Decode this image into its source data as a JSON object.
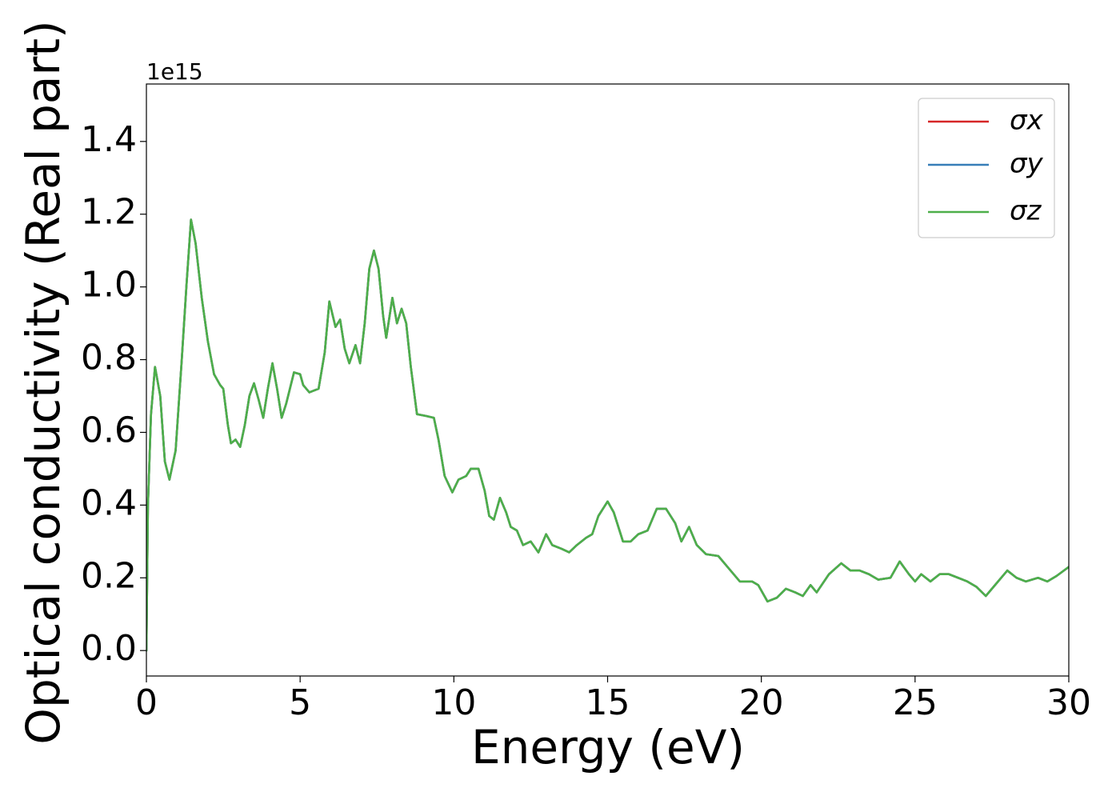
{
  "chart_data": {
    "type": "line",
    "x_label": "Energy (eV)",
    "y_label": "Optical conductivity (Real part)",
    "y_offset_label": "1e15",
    "xlim": [
      0,
      30
    ],
    "xticks": [
      0,
      5,
      10,
      15,
      20,
      25,
      30
    ],
    "ylim": [
      -0.07,
      1.558
    ],
    "yticks": [
      {
        "value": 0,
        "label": "0.0"
      },
      0.2,
      0.4,
      0.6,
      0.8,
      {
        "value": 1,
        "label": "1.0"
      },
      1.2,
      1.4
    ],
    "legend": "upper right",
    "x": [
      0,
      0.05,
      0.15,
      0.28,
      0.45,
      0.6,
      0.75,
      0.95,
      1.15,
      1.3,
      1.45,
      1.6,
      1.8,
      2.0,
      2.2,
      2.4,
      2.5,
      2.65,
      2.75,
      2.9,
      3.05,
      3.2,
      3.35,
      3.5,
      3.65,
      3.8,
      3.95,
      4.1,
      4.25,
      4.4,
      4.55,
      4.8,
      5.0,
      5.1,
      5.3,
      5.6,
      5.8,
      5.95,
      6.15,
      6.3,
      6.45,
      6.6,
      6.8,
      6.95,
      7.1,
      7.25,
      7.4,
      7.55,
      7.7,
      7.8,
      8.0,
      8.15,
      8.3,
      8.45,
      8.6,
      8.8,
      9.1,
      9.35,
      9.5,
      9.7,
      9.95,
      10.15,
      10.4,
      10.55,
      10.8,
      11.0,
      11.15,
      11.3,
      11.5,
      11.7,
      11.85,
      12.05,
      12.25,
      12.5,
      12.75,
      13.0,
      13.2,
      13.5,
      13.75,
      14.0,
      14.3,
      14.5,
      14.7,
      15.0,
      15.2,
      15.5,
      15.75,
      16.0,
      16.3,
      16.6,
      16.9,
      17.2,
      17.4,
      17.65,
      17.9,
      18.2,
      18.6,
      19.0,
      19.3,
      19.7,
      19.9,
      20.2,
      20.5,
      20.8,
      21.1,
      21.35,
      21.6,
      21.8,
      22.2,
      22.6,
      22.9,
      23.2,
      23.5,
      23.8,
      24.2,
      24.5,
      24.8,
      25.0,
      25.2,
      25.5,
      25.8,
      26.1,
      26.4,
      26.7,
      27.0,
      27.3,
      27.6,
      28.0,
      28.3,
      28.6,
      29.0,
      29.3,
      29.6,
      30.0
    ],
    "series": [
      {
        "name": "σx",
        "color": "#d62728",
        "values": [
          0,
          0.4,
          0.65,
          0.78,
          0.7,
          0.52,
          0.47,
          0.55,
          0.8,
          1.0,
          1.185,
          1.12,
          0.97,
          0.85,
          0.76,
          0.73,
          0.72,
          0.62,
          0.57,
          0.58,
          0.56,
          0.62,
          0.7,
          0.735,
          0.69,
          0.64,
          0.72,
          0.79,
          0.72,
          0.64,
          0.68,
          0.765,
          0.76,
          0.73,
          0.71,
          0.72,
          0.82,
          0.96,
          0.89,
          0.91,
          0.83,
          0.79,
          0.84,
          0.79,
          0.9,
          1.05,
          1.1,
          1.05,
          0.92,
          0.86,
          0.97,
          0.9,
          0.94,
          0.9,
          0.78,
          0.65,
          0.645,
          0.64,
          0.58,
          0.48,
          0.435,
          0.47,
          0.48,
          0.5,
          0.5,
          0.44,
          0.37,
          0.36,
          0.42,
          0.38,
          0.34,
          0.33,
          0.29,
          0.3,
          0.27,
          0.32,
          0.29,
          0.28,
          0.27,
          0.29,
          0.31,
          0.32,
          0.37,
          0.41,
          0.38,
          0.3,
          0.3,
          0.32,
          0.33,
          0.39,
          0.39,
          0.35,
          0.3,
          0.34,
          0.29,
          0.265,
          0.26,
          0.22,
          0.19,
          0.19,
          0.18,
          0.135,
          0.145,
          0.17,
          0.16,
          0.15,
          0.18,
          0.16,
          0.21,
          0.24,
          0.22,
          0.22,
          0.21,
          0.195,
          0.2,
          0.245,
          0.21,
          0.19,
          0.21,
          0.19,
          0.21,
          0.21,
          0.2,
          0.19,
          0.175,
          0.15,
          0.18,
          0.22,
          0.2,
          0.19,
          0.2,
          0.19,
          0.205,
          0.23
        ]
      },
      {
        "name": "σy",
        "color": "#377eb8",
        "values": [
          0,
          0.4,
          0.65,
          0.78,
          0.7,
          0.52,
          0.47,
          0.55,
          0.8,
          1.0,
          1.185,
          1.12,
          0.97,
          0.85,
          0.76,
          0.73,
          0.72,
          0.62,
          0.57,
          0.58,
          0.56,
          0.62,
          0.7,
          0.735,
          0.69,
          0.64,
          0.72,
          0.79,
          0.72,
          0.64,
          0.68,
          0.765,
          0.76,
          0.73,
          0.71,
          0.72,
          0.82,
          0.96,
          0.89,
          0.91,
          0.83,
          0.79,
          0.84,
          0.79,
          0.9,
          1.05,
          1.1,
          1.05,
          0.92,
          0.86,
          0.97,
          0.9,
          0.94,
          0.9,
          0.78,
          0.65,
          0.645,
          0.64,
          0.58,
          0.48,
          0.435,
          0.47,
          0.48,
          0.5,
          0.5,
          0.44,
          0.37,
          0.36,
          0.42,
          0.38,
          0.34,
          0.33,
          0.29,
          0.3,
          0.27,
          0.32,
          0.29,
          0.28,
          0.27,
          0.29,
          0.31,
          0.32,
          0.37,
          0.41,
          0.38,
          0.3,
          0.3,
          0.32,
          0.33,
          0.39,
          0.39,
          0.35,
          0.3,
          0.34,
          0.29,
          0.265,
          0.26,
          0.22,
          0.19,
          0.19,
          0.18,
          0.135,
          0.145,
          0.17,
          0.16,
          0.15,
          0.18,
          0.16,
          0.21,
          0.24,
          0.22,
          0.22,
          0.21,
          0.195,
          0.2,
          0.245,
          0.21,
          0.19,
          0.21,
          0.19,
          0.21,
          0.21,
          0.2,
          0.19,
          0.175,
          0.15,
          0.18,
          0.22,
          0.2,
          0.19,
          0.2,
          0.19,
          0.205,
          0.23
        ]
      },
      {
        "name": "σz",
        "color": "#4daf4a",
        "values": [
          0,
          0.4,
          0.65,
          0.78,
          0.7,
          0.52,
          0.47,
          0.55,
          0.8,
          1.0,
          1.185,
          1.12,
          0.97,
          0.85,
          0.76,
          0.73,
          0.72,
          0.62,
          0.57,
          0.58,
          0.56,
          0.62,
          0.7,
          0.735,
          0.69,
          0.64,
          0.72,
          0.79,
          0.72,
          0.64,
          0.68,
          0.765,
          0.76,
          0.73,
          0.71,
          0.72,
          0.82,
          0.96,
          0.89,
          0.91,
          0.83,
          0.79,
          0.84,
          0.79,
          0.9,
          1.05,
          1.1,
          1.05,
          0.92,
          0.86,
          0.97,
          0.9,
          0.94,
          0.9,
          0.78,
          0.65,
          0.645,
          0.64,
          0.58,
          0.48,
          0.435,
          0.47,
          0.48,
          0.5,
          0.5,
          0.44,
          0.37,
          0.36,
          0.42,
          0.38,
          0.34,
          0.33,
          0.29,
          0.3,
          0.27,
          0.32,
          0.29,
          0.28,
          0.27,
          0.29,
          0.31,
          0.32,
          0.37,
          0.41,
          0.38,
          0.3,
          0.3,
          0.32,
          0.33,
          0.39,
          0.39,
          0.35,
          0.3,
          0.34,
          0.29,
          0.265,
          0.26,
          0.22,
          0.19,
          0.19,
          0.18,
          0.135,
          0.145,
          0.17,
          0.16,
          0.15,
          0.18,
          0.16,
          0.21,
          0.24,
          0.22,
          0.22,
          0.21,
          0.195,
          0.2,
          0.245,
          0.21,
          0.19,
          0.21,
          0.19,
          0.21,
          0.21,
          0.2,
          0.19,
          0.175,
          0.15,
          0.18,
          0.22,
          0.2,
          0.19,
          0.2,
          0.19,
          0.205,
          0.23
        ]
      }
    ]
  }
}
